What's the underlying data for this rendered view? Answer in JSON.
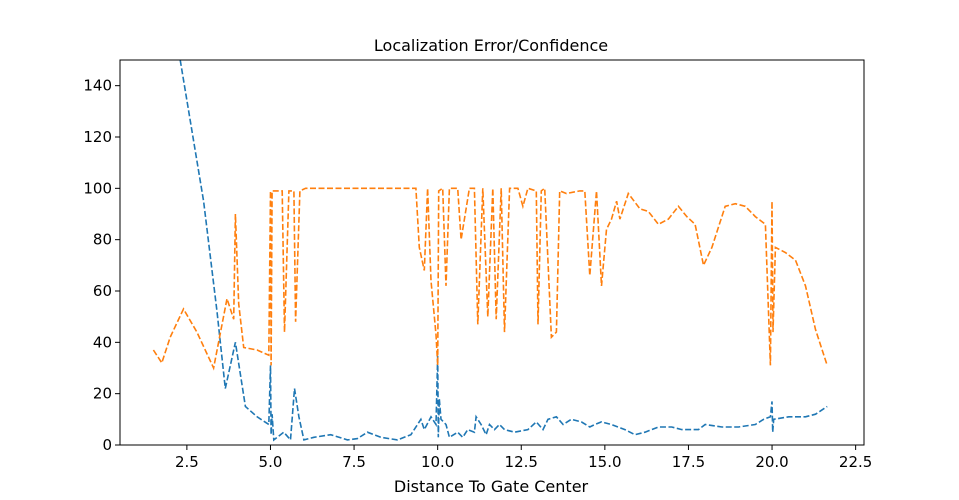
{
  "chart_data": {
    "type": "line",
    "title": "Localization Error/Confidence",
    "xlabel": "Distance To Gate Center",
    "ylabel": "",
    "xlim": [
      0.5,
      22.75
    ],
    "ylim": [
      0,
      150
    ],
    "xticks": [
      2.5,
      5.0,
      7.5,
      10.0,
      12.5,
      15.0,
      17.5,
      20.0,
      22.5
    ],
    "xtick_labels": [
      "2.5",
      "5.0",
      "7.5",
      "10.0",
      "12.5",
      "15.0",
      "17.5",
      "20.0",
      "22.5"
    ],
    "yticks": [
      0,
      20,
      40,
      60,
      80,
      100,
      120,
      140
    ],
    "ytick_labels": [
      "0",
      "20",
      "40",
      "60",
      "80",
      "100",
      "120",
      "140"
    ],
    "grid": false,
    "series": [
      {
        "color": "#1f77b4",
        "style": "dashed",
        "points": [
          [
            2.3,
            150
          ],
          [
            3.0,
            95
          ],
          [
            3.4,
            52
          ],
          [
            3.65,
            22
          ],
          [
            3.95,
            40
          ],
          [
            4.25,
            15
          ],
          [
            4.6,
            11
          ],
          [
            4.95,
            8
          ],
          [
            5.0,
            31
          ],
          [
            5.02,
            4
          ],
          [
            5.05,
            12
          ],
          [
            5.1,
            2
          ],
          [
            5.4,
            5
          ],
          [
            5.6,
            2
          ],
          [
            5.72,
            22
          ],
          [
            5.85,
            11
          ],
          [
            6.0,
            2
          ],
          [
            6.3,
            3
          ],
          [
            6.8,
            4
          ],
          [
            7.3,
            2
          ],
          [
            7.6,
            2.5
          ],
          [
            7.9,
            5
          ],
          [
            8.3,
            3
          ],
          [
            8.8,
            2
          ],
          [
            9.2,
            4
          ],
          [
            9.5,
            10
          ],
          [
            9.6,
            6
          ],
          [
            9.8,
            11
          ],
          [
            9.95,
            8
          ],
          [
            10.0,
            35
          ],
          [
            10.02,
            3
          ],
          [
            10.05,
            18
          ],
          [
            10.1,
            10
          ],
          [
            10.25,
            8
          ],
          [
            10.35,
            3
          ],
          [
            10.6,
            5
          ],
          [
            10.75,
            3
          ],
          [
            10.9,
            6
          ],
          [
            11.1,
            5
          ],
          [
            11.15,
            11
          ],
          [
            11.3,
            8
          ],
          [
            11.45,
            4
          ],
          [
            11.55,
            8
          ],
          [
            11.7,
            6
          ],
          [
            11.85,
            8
          ],
          [
            12.0,
            6
          ],
          [
            12.3,
            5
          ],
          [
            12.7,
            6
          ],
          [
            12.95,
            9
          ],
          [
            13.15,
            6
          ],
          [
            13.3,
            10
          ],
          [
            13.55,
            11
          ],
          [
            13.75,
            8
          ],
          [
            14.0,
            10
          ],
          [
            14.3,
            9
          ],
          [
            14.55,
            7
          ],
          [
            14.7,
            8
          ],
          [
            14.9,
            9
          ],
          [
            15.2,
            8
          ],
          [
            15.6,
            6
          ],
          [
            15.9,
            4
          ],
          [
            16.2,
            5
          ],
          [
            16.6,
            7
          ],
          [
            17.0,
            7
          ],
          [
            17.3,
            6
          ],
          [
            17.8,
            6
          ],
          [
            18.0,
            8
          ],
          [
            18.5,
            7
          ],
          [
            19.0,
            7
          ],
          [
            19.5,
            8
          ],
          [
            19.75,
            10
          ],
          [
            19.95,
            11
          ],
          [
            20.0,
            17
          ],
          [
            20.02,
            5
          ],
          [
            20.05,
            10
          ],
          [
            20.5,
            11
          ],
          [
            21.0,
            11
          ],
          [
            21.3,
            12
          ],
          [
            21.65,
            15
          ]
        ]
      },
      {
        "color": "#ff7f0e",
        "style": "dashed",
        "points": [
          [
            1.5,
            37
          ],
          [
            1.75,
            32
          ],
          [
            2.0,
            42
          ],
          [
            2.4,
            53
          ],
          [
            2.8,
            44
          ],
          [
            3.3,
            30
          ],
          [
            3.7,
            57
          ],
          [
            3.9,
            49
          ],
          [
            3.95,
            90
          ],
          [
            4.05,
            55
          ],
          [
            4.2,
            38
          ],
          [
            4.6,
            37
          ],
          [
            4.95,
            35
          ],
          [
            5.0,
            99
          ],
          [
            5.02,
            31
          ],
          [
            5.05,
            99
          ],
          [
            5.1,
            99
          ],
          [
            5.2,
            99
          ],
          [
            5.35,
            99
          ],
          [
            5.42,
            44
          ],
          [
            5.55,
            99
          ],
          [
            5.7,
            99
          ],
          [
            5.75,
            48
          ],
          [
            5.88,
            99
          ],
          [
            6.05,
            100
          ],
          [
            7.0,
            100
          ],
          [
            8.0,
            100
          ],
          [
            9.0,
            100
          ],
          [
            9.35,
            100
          ],
          [
            9.45,
            77
          ],
          [
            9.6,
            68
          ],
          [
            9.7,
            100
          ],
          [
            9.8,
            64
          ],
          [
            9.95,
            43
          ],
          [
            10.0,
            31
          ],
          [
            10.03,
            99
          ],
          [
            10.15,
            100
          ],
          [
            10.25,
            62
          ],
          [
            10.35,
            100
          ],
          [
            10.6,
            100
          ],
          [
            10.7,
            80
          ],
          [
            10.95,
            100
          ],
          [
            11.1,
            100
          ],
          [
            11.2,
            47
          ],
          [
            11.35,
            100
          ],
          [
            11.5,
            50
          ],
          [
            11.65,
            100
          ],
          [
            11.75,
            49
          ],
          [
            11.9,
            100
          ],
          [
            12.0,
            44
          ],
          [
            12.15,
            100
          ],
          [
            12.4,
            100
          ],
          [
            12.55,
            93
          ],
          [
            12.7,
            100
          ],
          [
            12.95,
            99
          ],
          [
            13.0,
            47
          ],
          [
            13.1,
            99
          ],
          [
            13.2,
            100
          ],
          [
            13.4,
            42
          ],
          [
            13.55,
            44
          ],
          [
            13.65,
            99
          ],
          [
            13.85,
            98
          ],
          [
            14.25,
            99
          ],
          [
            14.4,
            99
          ],
          [
            14.55,
            66
          ],
          [
            14.75,
            99
          ],
          [
            14.9,
            62
          ],
          [
            15.05,
            84
          ],
          [
            15.2,
            88
          ],
          [
            15.35,
            95
          ],
          [
            15.45,
            88
          ],
          [
            15.7,
            98
          ],
          [
            16.05,
            92
          ],
          [
            16.3,
            91
          ],
          [
            16.6,
            86
          ],
          [
            16.9,
            88
          ],
          [
            17.2,
            93
          ],
          [
            17.45,
            89
          ],
          [
            17.7,
            86
          ],
          [
            17.95,
            70
          ],
          [
            18.2,
            77
          ],
          [
            18.6,
            93
          ],
          [
            18.9,
            94
          ],
          [
            19.2,
            93
          ],
          [
            19.5,
            89
          ],
          [
            19.8,
            86
          ],
          [
            19.95,
            31
          ],
          [
            20.0,
            95
          ],
          [
            20.03,
            44
          ],
          [
            20.1,
            77
          ],
          [
            20.4,
            75
          ],
          [
            20.7,
            72
          ],
          [
            21.0,
            62
          ],
          [
            21.3,
            45
          ],
          [
            21.65,
            31
          ]
        ]
      }
    ]
  }
}
